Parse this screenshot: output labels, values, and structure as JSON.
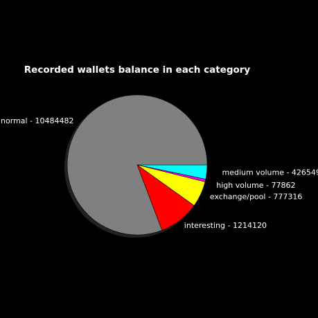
{
  "chart_data": {
    "type": "pie",
    "title": "Recorded wallets balance in each category",
    "shadow": true,
    "start": "3 o'clock",
    "direction": "clockwise",
    "slices": [
      {
        "category": "medium volume",
        "value": 426549,
        "label": "medium volume - 426549",
        "color": "#00ffff"
      },
      {
        "category": "high volume",
        "value": 77862,
        "label": "high volume - 77862",
        "color": "#ff00ff"
      },
      {
        "category": "exchange/pool",
        "value": 777316,
        "label": "exchange/pool - 777316",
        "color": "#ffff00"
      },
      {
        "category": "interesting",
        "value": 1214120,
        "label": "interesting - 1214120",
        "color": "#ff0000"
      },
      {
        "category": "normal",
        "value": 10484482,
        "label": "normal - 10484482",
        "color": "#808080"
      }
    ]
  }
}
